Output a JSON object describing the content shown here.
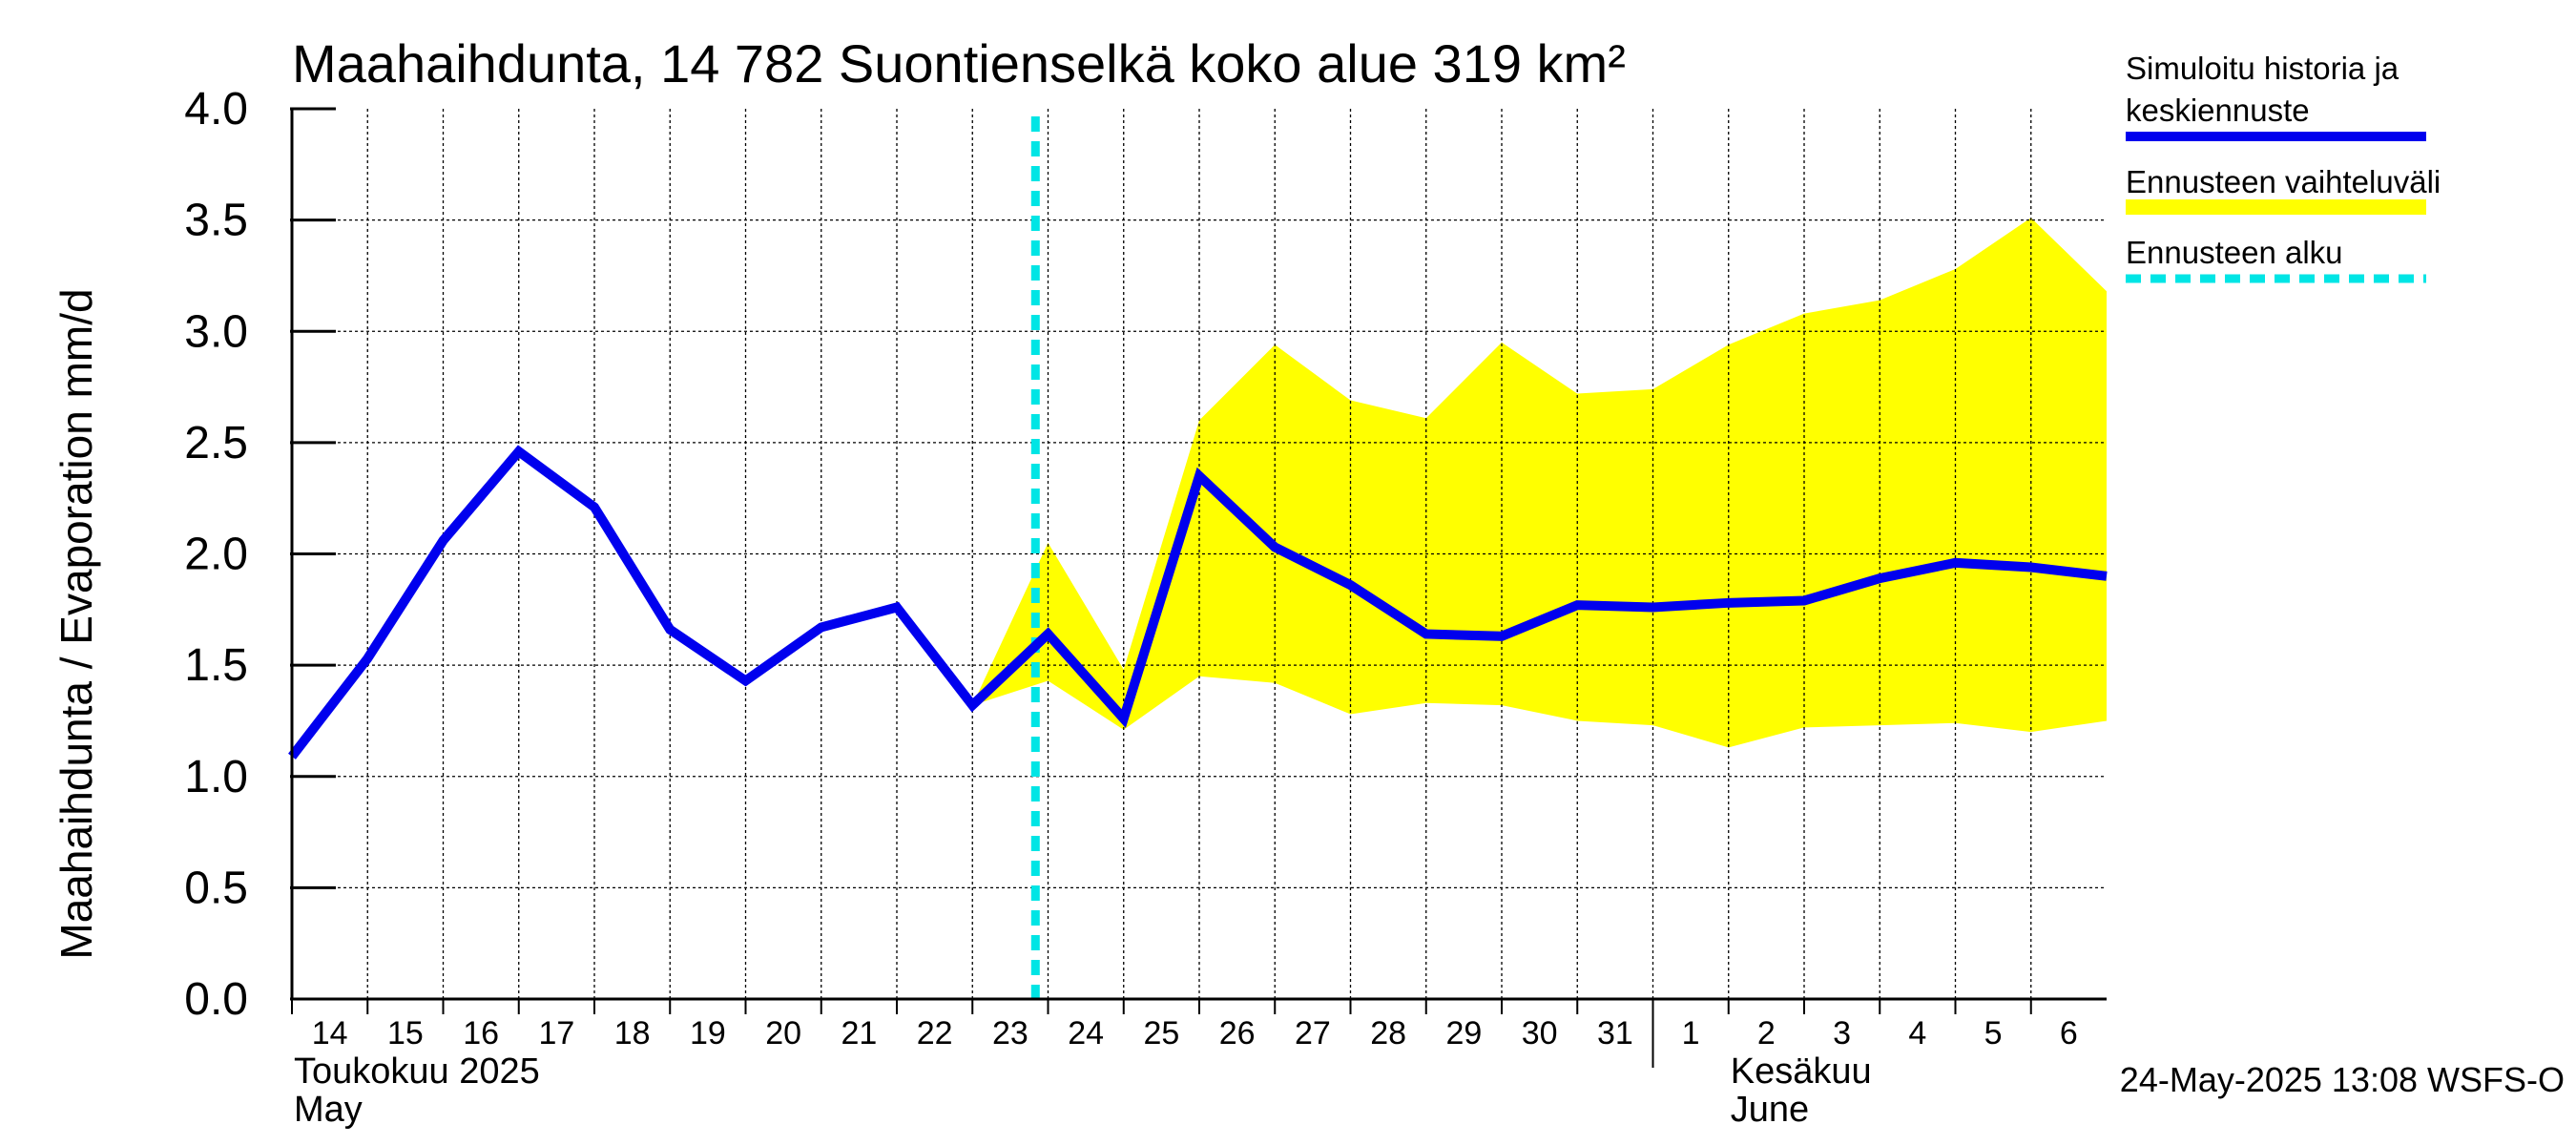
{
  "chart_data": {
    "type": "line",
    "title": "Maahaihdunta, 14 782 Suontienselkä koko alue 319 km²",
    "ylabel": "Maahaihdunta / Evaporation   mm/d",
    "ylim": [
      0,
      4
    ],
    "yticks": [
      "0.0",
      "0.5",
      "1.0",
      "1.5",
      "2.0",
      "2.5",
      "3.0",
      "3.5",
      "4.0"
    ],
    "grid": true,
    "legend_position": "right",
    "x_start": "2025-05-14",
    "x_end": "2025-06-07",
    "day_ticks": [
      {
        "date": "2025-05-14",
        "label": "14"
      },
      {
        "date": "2025-05-15",
        "label": "15"
      },
      {
        "date": "2025-05-16",
        "label": "16"
      },
      {
        "date": "2025-05-17",
        "label": "17"
      },
      {
        "date": "2025-05-18",
        "label": "18"
      },
      {
        "date": "2025-05-19",
        "label": "19"
      },
      {
        "date": "2025-05-20",
        "label": "20"
      },
      {
        "date": "2025-05-21",
        "label": "21"
      },
      {
        "date": "2025-05-22",
        "label": "22"
      },
      {
        "date": "2025-05-23",
        "label": "23"
      },
      {
        "date": "2025-05-24",
        "label": "24"
      },
      {
        "date": "2025-05-25",
        "label": "25"
      },
      {
        "date": "2025-05-26",
        "label": "26"
      },
      {
        "date": "2025-05-27",
        "label": "27"
      },
      {
        "date": "2025-05-28",
        "label": "28"
      },
      {
        "date": "2025-05-29",
        "label": "29"
      },
      {
        "date": "2025-05-30",
        "label": "30"
      },
      {
        "date": "2025-05-31",
        "label": "31"
      },
      {
        "date": "2025-06-01",
        "label": "1"
      },
      {
        "date": "2025-06-02",
        "label": "2"
      },
      {
        "date": "2025-06-03",
        "label": "3"
      },
      {
        "date": "2025-06-04",
        "label": "4"
      },
      {
        "date": "2025-06-05",
        "label": "5"
      },
      {
        "date": "2025-06-06",
        "label": "6"
      }
    ],
    "months": [
      {
        "date": "2025-05-14",
        "fi": "Toukokuu  2025",
        "en": "May"
      },
      {
        "date": "2025-06-02",
        "fi": "Kesäkuu",
        "en": "June",
        "boundary": "2025-06-01"
      }
    ],
    "forecast_start": "2025-05-23T20:00",
    "series": [
      {
        "name": "Simuloitu historia ja keskiennuste",
        "color": "#0000ee",
        "x": [
          "2025-05-14",
          "2025-05-15",
          "2025-05-16",
          "2025-05-17",
          "2025-05-18",
          "2025-05-19",
          "2025-05-20",
          "2025-05-21",
          "2025-05-22",
          "2025-05-23",
          "2025-05-24",
          "2025-05-25",
          "2025-05-26",
          "2025-05-27",
          "2025-05-28",
          "2025-05-29",
          "2025-05-30",
          "2025-05-31",
          "2025-06-01",
          "2025-06-02",
          "2025-06-03",
          "2025-06-04",
          "2025-06-05",
          "2025-06-06",
          "2025-06-07"
        ],
        "y": [
          1.09,
          1.53,
          2.06,
          2.46,
          2.21,
          1.66,
          1.43,
          1.67,
          1.76,
          1.32,
          1.64,
          1.26,
          2.35,
          2.03,
          1.86,
          1.64,
          1.63,
          1.77,
          1.76,
          1.78,
          1.79,
          1.89,
          1.96,
          1.94,
          1.9
        ]
      }
    ],
    "band": {
      "name": "Ennusteen vaihteluväli",
      "color": "#ffff00",
      "x": [
        "2025-05-23",
        "2025-05-24",
        "2025-05-25",
        "2025-05-26",
        "2025-05-27",
        "2025-05-28",
        "2025-05-29",
        "2025-05-30",
        "2025-05-31",
        "2025-06-01",
        "2025-06-02",
        "2025-06-03",
        "2025-06-04",
        "2025-06-05",
        "2025-06-06",
        "2025-06-07"
      ],
      "low": [
        1.32,
        1.43,
        1.21,
        1.45,
        1.42,
        1.28,
        1.33,
        1.32,
        1.25,
        1.23,
        1.13,
        1.22,
        1.23,
        1.24,
        1.2,
        1.25
      ],
      "high": [
        1.32,
        2.05,
        1.48,
        2.6,
        2.94,
        2.69,
        2.61,
        2.95,
        2.72,
        2.74,
        2.94,
        3.08,
        3.14,
        3.28,
        3.51,
        3.18
      ]
    },
    "legend": [
      {
        "label": "Simuloitu historia ja\nkeskiennuste",
        "kind": "line",
        "color": "#0000ee"
      },
      {
        "label": "Ennusteen vaihteluväli",
        "kind": "band",
        "color": "#ffff00"
      },
      {
        "label": "Ennusteen alku",
        "kind": "dashed",
        "color": "#00e5e5"
      }
    ],
    "footer": "24-May-2025 13:08 WSFS-O"
  }
}
